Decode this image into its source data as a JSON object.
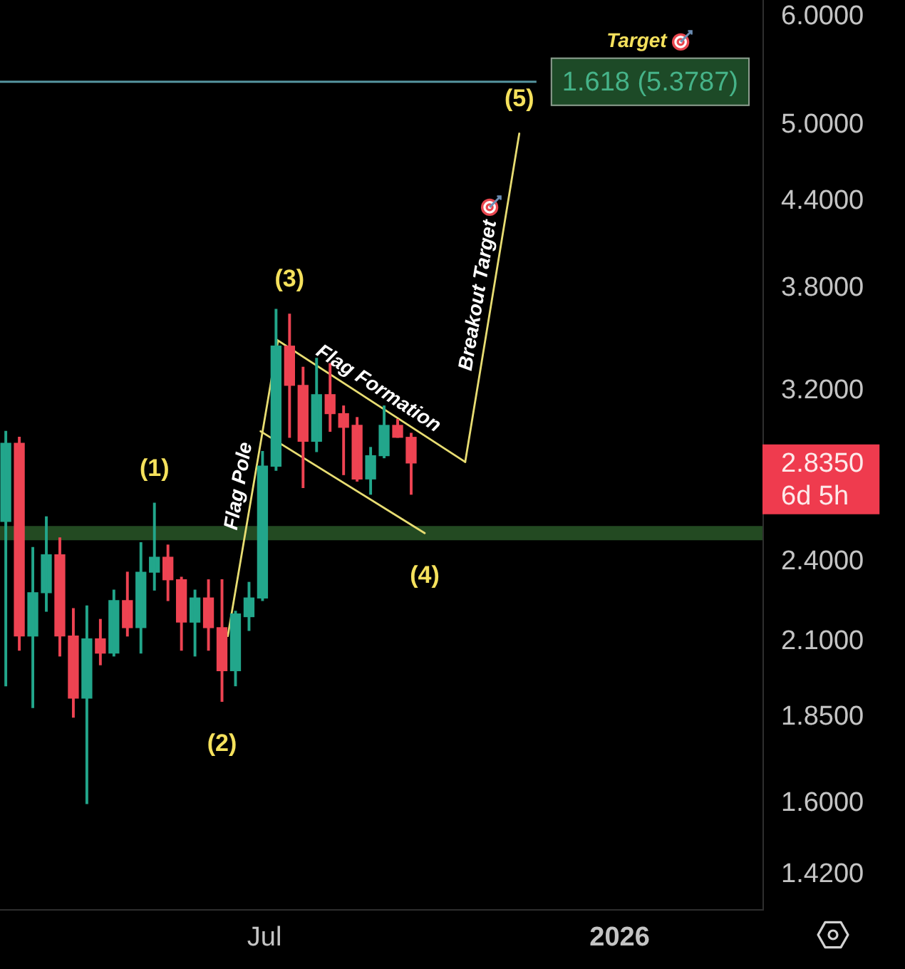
{
  "chart_data": {
    "type": "candlestick",
    "x": [
      "2025-02-17",
      "2025-02-24",
      "2025-03-03",
      "2025-03-10",
      "2025-03-17",
      "2025-03-24",
      "2025-03-31",
      "2025-04-07",
      "2025-04-14",
      "2025-04-21",
      "2025-04-28",
      "2025-05-05",
      "2025-05-12",
      "2025-05-19",
      "2025-05-26",
      "2025-06-02",
      "2025-06-09",
      "2025-06-16",
      "2025-06-23",
      "2025-06-30",
      "2025-07-07",
      "2025-07-14",
      "2025-07-21",
      "2025-07-28",
      "2025-08-04",
      "2025-08-11",
      "2025-08-18",
      "2025-08-25",
      "2025-09-01",
      "2025-09-08",
      "2025-09-15"
    ],
    "ohlc": [
      [
        2.57,
        2.99,
        1.95,
        2.93
      ],
      [
        2.93,
        2.96,
        2.07,
        2.12
      ],
      [
        2.12,
        2.46,
        1.88,
        2.28
      ],
      [
        2.28,
        2.59,
        2.21,
        2.43
      ],
      [
        2.43,
        2.5,
        2.05,
        2.12
      ],
      [
        2.12,
        2.22,
        1.85,
        1.91
      ],
      [
        1.91,
        2.23,
        1.6,
        2.11
      ],
      [
        2.11,
        2.18,
        2.02,
        2.06
      ],
      [
        2.06,
        2.29,
        2.05,
        2.25
      ],
      [
        2.25,
        2.36,
        2.12,
        2.15
      ],
      [
        2.15,
        2.48,
        2.06,
        2.36
      ],
      [
        2.36,
        2.65,
        2.29,
        2.42
      ],
      [
        2.42,
        2.47,
        2.25,
        2.33
      ],
      [
        2.33,
        2.34,
        2.07,
        2.17
      ],
      [
        2.17,
        2.29,
        2.05,
        2.26
      ],
      [
        2.26,
        2.33,
        2.07,
        2.15
      ],
      [
        2.15,
        2.33,
        1.9,
        2.0
      ],
      [
        2.0,
        2.21,
        1.95,
        2.2
      ],
      [
        2.19,
        2.32,
        2.14,
        2.26
      ],
      [
        2.26,
        2.89,
        2.25,
        2.82
      ],
      [
        2.82,
        3.67,
        2.8,
        3.45
      ],
      [
        3.45,
        3.64,
        2.96,
        3.23
      ],
      [
        3.23,
        3.33,
        2.72,
        2.94
      ],
      [
        2.94,
        3.38,
        2.89,
        3.18
      ],
      [
        3.18,
        3.35,
        2.99,
        3.08
      ],
      [
        3.08,
        3.12,
        2.78,
        3.01
      ],
      [
        3.02,
        3.06,
        2.75,
        2.76
      ],
      [
        2.76,
        2.91,
        2.69,
        2.87
      ],
      [
        2.87,
        3.12,
        2.86,
        3.02
      ],
      [
        3.02,
        3.05,
        2.96,
        2.96
      ],
      [
        2.96,
        2.98,
        2.69,
        2.835
      ]
    ],
    "colors": [
      "#22a68b",
      "#ee4352",
      "#22a68b",
      "#22a68b",
      "#ee4352",
      "#ee4352",
      "#22a68b",
      "#ee4352",
      "#22a68b",
      "#ee4352",
      "#22a68b",
      "#22a68b",
      "#ee4352",
      "#ee4352",
      "#22a68b",
      "#ee4352",
      "#ee4352",
      "#22a68b",
      "#22a68b",
      "#22a68b",
      "#22a68b",
      "#ee4352",
      "#ee4352",
      "#22a68b",
      "#ee4352",
      "#ee4352",
      "#ee4352",
      "#22a68b",
      "#22a68b",
      "#ee4352",
      "#ee4352"
    ],
    "series": [
      {
        "type": "line",
        "name": "Flag Pole",
        "color": "#e8dd72",
        "x": [
          "2025-06-12",
          "2025-07-08"
        ],
        "values": [
          2.12,
          3.48
        ]
      },
      {
        "type": "line",
        "name": "Flag Formation",
        "color": "#e8dd72",
        "x": [
          "2025-07-07",
          "2025-10-13"
        ],
        "values": [
          3.49,
          2.84
        ]
      },
      {
        "type": "line",
        "color": "#e8dd72",
        "x": [
          "2025-06-29",
          "2025-09-22"
        ],
        "values": [
          2.99,
          2.52
        ]
      },
      {
        "type": "line",
        "name": "Breakout Target",
        "color": "#e8dd72",
        "x": [
          "2025-10-13",
          "2025-11-10"
        ],
        "values": [
          2.84,
          4.93
        ]
      }
    ],
    "xlim": [
      "2025-02-14",
      "2026-03-16"
    ],
    "xticks": [
      {
        "value": "2025-07-01",
        "label": "Jul"
      },
      {
        "value": "2026-01-01",
        "label": "2026"
      }
    ],
    "ylim": [
      1.34,
      6.17
    ],
    "yticks": [
      {
        "value": 1.42,
        "label": "1.4200"
      },
      {
        "value": 1.6,
        "label": "1.6000"
      },
      {
        "value": 1.85,
        "label": "1.8500"
      },
      {
        "value": 2.1,
        "label": "2.1000"
      },
      {
        "value": 2.4,
        "label": "2.4000"
      },
      {
        "value": 3.2,
        "label": "3.2000"
      },
      {
        "value": 3.8,
        "label": "3.8000"
      },
      {
        "value": 4.4,
        "label": "4.4000"
      },
      {
        "value": 5,
        "label": "5.0000"
      },
      {
        "value": 6,
        "label": "6.0000"
      }
    ],
    "log": "y",
    "ref_lines": [
      {
        "axis": "y",
        "value": 5.3787,
        "label": "1.618 (5.3787)",
        "color": "#56949f"
      }
    ],
    "bands": [
      {
        "axis": "y",
        "from": 2.49,
        "to": 2.55,
        "color": "#234a22"
      }
    ],
    "annotations": [
      {
        "text": "(1)",
        "x": "2025-05-05",
        "y": 2.65
      },
      {
        "text": "(2)",
        "x": "2025-06-09",
        "y": 1.9
      },
      {
        "text": "(3)",
        "x": "2025-07-14",
        "y": 3.64
      },
      {
        "text": "(4)",
        "x": "2025-09-22",
        "y": 2.52
      },
      {
        "text": "(5)",
        "x": "2025-11-10",
        "y": 4.93
      },
      "Target",
      "2.8350\n6d 5h"
    ]
  }
}
